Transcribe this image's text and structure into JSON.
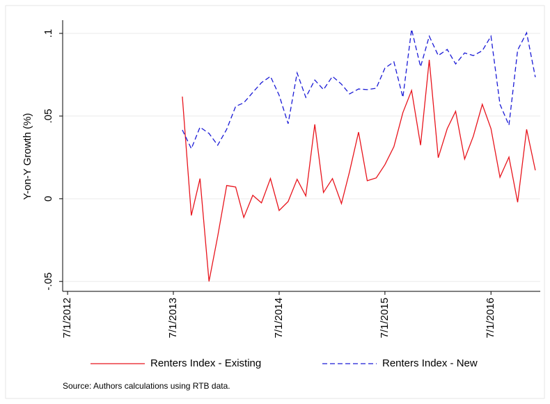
{
  "chart_data": {
    "type": "line",
    "y_label": "Y-on-Y Growth (%)",
    "note": "Source: Authors calculations using RTB data.",
    "x": [
      "2013-08-01",
      "2013-09-01",
      "2013-10-01",
      "2013-11-01",
      "2013-12-01",
      "2014-01-01",
      "2014-02-01",
      "2014-03-01",
      "2014-04-01",
      "2014-05-01",
      "2014-06-01",
      "2014-07-01",
      "2014-08-01",
      "2014-09-01",
      "2014-10-01",
      "2014-11-01",
      "2014-12-01",
      "2015-01-01",
      "2015-02-01",
      "2015-03-01",
      "2015-04-01",
      "2015-05-01",
      "2015-06-01",
      "2015-07-01",
      "2015-08-01",
      "2015-09-01",
      "2015-10-01",
      "2015-11-01",
      "2015-12-01",
      "2016-01-01",
      "2016-02-01",
      "2016-03-01",
      "2016-04-01",
      "2016-05-01",
      "2016-06-01",
      "2016-07-01",
      "2016-08-01",
      "2016-09-01",
      "2016-10-01",
      "2016-11-01",
      "2016-12-01"
    ],
    "series": [
      {
        "name": "Renters Index - Existing",
        "color": "#e8141c",
        "dash": "solid",
        "values": [
          0.0618,
          -0.0101,
          0.0122,
          -0.05,
          -0.0227,
          0.008,
          0.0071,
          -0.0113,
          0.0021,
          -0.0025,
          0.0122,
          -0.0071,
          -0.0017,
          0.0118,
          0.0017,
          0.045,
          0.0038,
          0.0122,
          -0.0029,
          0.0164,
          0.0403,
          0.0109,
          0.0126,
          0.0206,
          0.0315,
          0.0521,
          0.0655,
          0.0324,
          0.084,
          0.0248,
          0.0424,
          0.0529,
          0.024,
          0.0378,
          0.0571,
          0.0424,
          0.013,
          0.0252,
          -0.0021,
          0.042,
          0.0172
        ]
      },
      {
        "name": "Renters Index - New",
        "color": "#1a1ad6",
        "dash": "dashed",
        "values": [
          0.0416,
          0.0303,
          0.0433,
          0.0395,
          0.0324,
          0.042,
          0.0559,
          0.058,
          0.0643,
          0.0702,
          0.074,
          0.0626,
          0.0454,
          0.0761,
          0.0613,
          0.0718,
          0.066,
          0.074,
          0.0693,
          0.0634,
          0.0664,
          0.066,
          0.0668,
          0.079,
          0.0828,
          0.0613,
          0.1025,
          0.0798,
          0.0983,
          0.0866,
          0.0903,
          0.0815,
          0.0882,
          0.0866,
          0.0895,
          0.0983,
          0.0571,
          0.0445,
          0.0899,
          0.1004,
          0.0735
        ]
      }
    ],
    "xlim": [
      "2012-06-14",
      "2016-12-18"
    ],
    "xticks": [
      {
        "value": "2012-07-01",
        "label": "7/1/2012"
      },
      {
        "value": "2013-07-01",
        "label": "7/1/2013"
      },
      {
        "value": "2014-07-01",
        "label": "7/1/2014"
      },
      {
        "value": "2015-07-01",
        "label": "7/1/2015"
      },
      {
        "value": "2016-07-01",
        "label": "7/1/2016"
      }
    ],
    "ylim": [
      -0.056,
      0.108
    ],
    "yticks": [
      {
        "value": -0.05,
        "label": "-.05"
      },
      0,
      {
        "value": 0.05,
        "label": ".05"
      },
      {
        "value": 0.1,
        "label": ".1"
      }
    ],
    "grid": true,
    "legend": "bottom"
  }
}
